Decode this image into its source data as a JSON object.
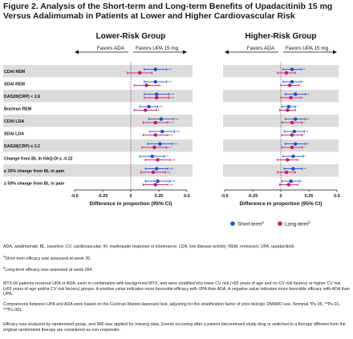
{
  "title": "Figure 2. Analysis of the Short-term and Long-term Benefits of Upadacitinib 15 mg Versus Adalimumab in Patients at Lower and Higher Cardiovascular Risk",
  "chart_data": {
    "type": "forest",
    "x_range": [
      -0.5,
      0.5
    ],
    "x_ticks": [
      "-0.5",
      "-0.25",
      "0",
      "0.25",
      "0.5"
    ],
    "xlabel": "Difference in proportion (95% CI)",
    "favors_left": "Favors  ADA",
    "favors_right": "Favors  UPA 15 mg",
    "legend": {
      "short": "Short-term",
      "short_sup": "a",
      "long": "Long-term",
      "long_sup": "b",
      "short_color": "#1f4fd8",
      "long_color": "#c8176b"
    },
    "outcomes": [
      "CDAI REM",
      "SDAI REM",
      "DAS28(CRP) < 2.6",
      "Boolean REM",
      "CDAI LDA",
      "SDAI LDA",
      "DAS28(CRP) ≤ 3.2",
      "Change from BL in HAQ-DI ≤ -0.22",
      "≥ 30% change from BL in pain",
      "≥ 50% change from BL in pain"
    ],
    "panels": [
      {
        "title": "Lower-Risk Group",
        "rows": [
          {
            "short": {
              "est": 0.22,
              "lo": 0.12,
              "hi": 0.32,
              "sig": "***"
            },
            "long": {
              "est": 0.08,
              "lo": -0.03,
              "hi": 0.19,
              "sig": ""
            }
          },
          {
            "short": {
              "est": 0.22,
              "lo": 0.12,
              "hi": 0.32,
              "sig": "***"
            },
            "long": {
              "est": 0.14,
              "lo": 0.03,
              "hi": 0.25,
              "sig": "*"
            }
          },
          {
            "short": {
              "est": 0.23,
              "lo": 0.12,
              "hi": 0.34,
              "sig": "***"
            },
            "long": {
              "est": 0.23,
              "lo": 0.12,
              "hi": 0.34,
              "sig": "***"
            }
          },
          {
            "short": {
              "est": 0.16,
              "lo": 0.08,
              "hi": 0.24,
              "sig": "***"
            },
            "long": {
              "est": 0.13,
              "lo": 0.03,
              "hi": 0.23,
              "sig": "*"
            }
          },
          {
            "short": {
              "est": 0.27,
              "lo": 0.16,
              "hi": 0.38,
              "sig": "***"
            },
            "long": {
              "est": 0.22,
              "lo": 0.11,
              "hi": 0.33,
              "sig": "***"
            }
          },
          {
            "short": {
              "est": 0.28,
              "lo": 0.17,
              "hi": 0.39,
              "sig": "***"
            },
            "long": {
              "est": 0.22,
              "lo": 0.11,
              "hi": 0.33,
              "sig": "***"
            }
          },
          {
            "short": {
              "est": 0.26,
              "lo": 0.15,
              "hi": 0.37,
              "sig": "***"
            },
            "long": {
              "est": 0.21,
              "lo": 0.1,
              "hi": 0.32,
              "sig": "***"
            }
          },
          {
            "short": {
              "est": 0.19,
              "lo": 0.08,
              "hi": 0.3,
              "sig": "**"
            },
            "long": {
              "est": 0.24,
              "lo": 0.13,
              "hi": 0.35,
              "sig": "***"
            }
          },
          {
            "short": {
              "est": 0.23,
              "lo": 0.13,
              "hi": 0.33,
              "sig": "***"
            },
            "long": {
              "est": 0.2,
              "lo": 0.09,
              "hi": 0.31,
              "sig": "***"
            }
          },
          {
            "short": {
              "est": 0.24,
              "lo": 0.13,
              "hi": 0.35,
              "sig": "***"
            },
            "long": {
              "est": 0.22,
              "lo": 0.11,
              "hi": 0.33,
              "sig": "***"
            }
          }
        ]
      },
      {
        "title": "Higher-Risk Group",
        "rows": [
          {
            "short": {
              "est": 0.1,
              "lo": 0.02,
              "hi": 0.18,
              "sig": "**"
            },
            "long": {
              "est": 0.05,
              "lo": -0.03,
              "hi": 0.13,
              "sig": ""
            }
          },
          {
            "short": {
              "est": 0.1,
              "lo": 0.02,
              "hi": 0.18,
              "sig": "*"
            },
            "long": {
              "est": 0.08,
              "lo": 0.0,
              "hi": 0.16,
              "sig": "*"
            }
          },
          {
            "short": {
              "est": 0.13,
              "lo": 0.04,
              "hi": 0.22,
              "sig": "**"
            },
            "long": {
              "est": 0.09,
              "lo": 0.0,
              "hi": 0.18,
              "sig": "*"
            }
          },
          {
            "short": {
              "est": 0.07,
              "lo": 0.01,
              "hi": 0.13,
              "sig": "*"
            },
            "long": {
              "est": 0.06,
              "lo": -0.01,
              "hi": 0.13,
              "sig": ""
            }
          },
          {
            "short": {
              "est": 0.13,
              "lo": 0.04,
              "hi": 0.22,
              "sig": "**"
            },
            "long": {
              "est": 0.1,
              "lo": 0.01,
              "hi": 0.19,
              "sig": "*"
            }
          },
          {
            "short": {
              "est": 0.12,
              "lo": 0.03,
              "hi": 0.21,
              "sig": "**"
            },
            "long": {
              "est": 0.1,
              "lo": 0.01,
              "hi": 0.19,
              "sig": "*"
            }
          },
          {
            "short": {
              "est": 0.13,
              "lo": 0.04,
              "hi": 0.22,
              "sig": "**"
            },
            "long": {
              "est": 0.1,
              "lo": 0.01,
              "hi": 0.19,
              "sig": "*"
            }
          },
          {
            "short": {
              "est": 0.11,
              "lo": 0.02,
              "hi": 0.2,
              "sig": "*"
            },
            "long": {
              "est": 0.06,
              "lo": -0.03,
              "hi": 0.15,
              "sig": ""
            }
          },
          {
            "short": {
              "est": 0.11,
              "lo": 0.03,
              "hi": 0.19,
              "sig": "**"
            },
            "long": {
              "est": 0.05,
              "lo": -0.03,
              "hi": 0.13,
              "sig": ""
            }
          },
          {
            "short": {
              "est": 0.09,
              "lo": 0.01,
              "hi": 0.17,
              "sig": "*"
            },
            "long": {
              "est": 0.07,
              "lo": -0.01,
              "hi": 0.15,
              "sig": ""
            }
          }
        ]
      }
    ]
  },
  "footnotes": {
    "abbrev": "ADA, adalimumab; BL, baseline; CV, cardiovascular; IR, inadequate response or intolerance; LDA, low disease activity; REM, remission; UPA, upadacitinib.",
    "a_sup": "a",
    "a_text": "Short term efficacy was assessed at week 26.",
    "b_sup": "b",
    "b_text": "Long-term efficacy was assessed at week 264.",
    "mtx": "MTX-IR patients received UPA or ADA, each in combination with background MTX, and were stratified into lower CV risk (<65 years of age and no CV risk factors) or higher CV risk (≥65 years of age and/or CV risk factors) groups. A positive value indicates more favorable efficacy with UPA than ADA. A negative value indicates more favorable efficacy with ADA than UPA.",
    "comparisons": "Comparisons between UPA and ADA were based on the Cochran-Mantel-Haenszel test, adjusting for the stratification factor of prior biologic DMARD use. Nominal *P≤.05, **P≤.01, ***P≤.001.",
    "efficacy": "Efficacy was analyzed by randomized group, and NRI was applied for missing data. Events occurring after a patient discontinued study drug or switched to a therapy different from the original randomized therapy are considered as non-responder."
  }
}
